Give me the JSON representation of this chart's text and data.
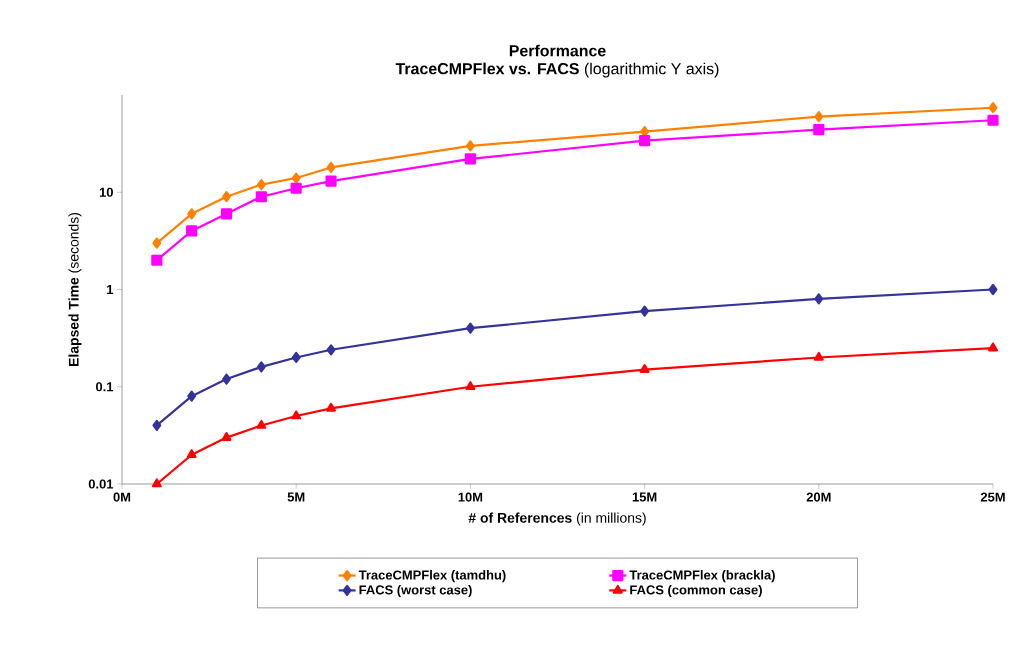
{
  "chart_data": {
    "type": "line",
    "title": "Performance",
    "subtitle": "**TraceCMPFlex vs. FACS** (logarithmic Y axis)",
    "xlabel": "**# of References** (in millions)",
    "ylabel": "**Elapsed Time** (seconds)",
    "log": "y",
    "grid": false,
    "legend": "bottom",
    "line_style": "solid",
    "xlim": [
      0,
      25
    ],
    "xticks": [
      {
        "value": 0,
        "label": "0M"
      },
      {
        "value": 5,
        "label": "5M"
      },
      {
        "value": 10,
        "label": "10M"
      },
      {
        "value": 15,
        "label": "15M"
      },
      {
        "value": 20,
        "label": "20M"
      },
      {
        "value": 25,
        "label": "25M"
      }
    ],
    "ylim": [
      0.01,
      100
    ],
    "yticks": [
      0.01,
      0.1,
      1,
      10
    ],
    "x": [
      1,
      2,
      3,
      4,
      5,
      6,
      10,
      15,
      20,
      25
    ],
    "series": [
      {
        "name": "TraceCMPFlex (tamdhu)",
        "color": "#ff8000",
        "marker": "diamond",
        "values": [
          3,
          6,
          9,
          12,
          14,
          18,
          30,
          42,
          60,
          74
        ]
      },
      {
        "name": "TraceCMPFlex (brackla)",
        "color": "#ff00ff",
        "marker": "square",
        "values": [
          2,
          4,
          6,
          9,
          11,
          13,
          22,
          34,
          44,
          55
        ]
      },
      {
        "name": "FACS (worst case)",
        "color": "#333399",
        "marker": "diamond",
        "values": [
          0.04,
          0.08,
          0.12,
          0.16,
          0.2,
          0.24,
          0.4,
          0.6,
          0.8,
          1
        ]
      },
      {
        "name": "FACS (common case)",
        "color": "#ff0000",
        "marker": "triangle",
        "values": [
          0.01,
          0.02,
          0.03,
          0.04,
          0.05,
          0.06,
          0.1,
          0.15,
          0.2,
          0.25
        ]
      }
    ]
  }
}
